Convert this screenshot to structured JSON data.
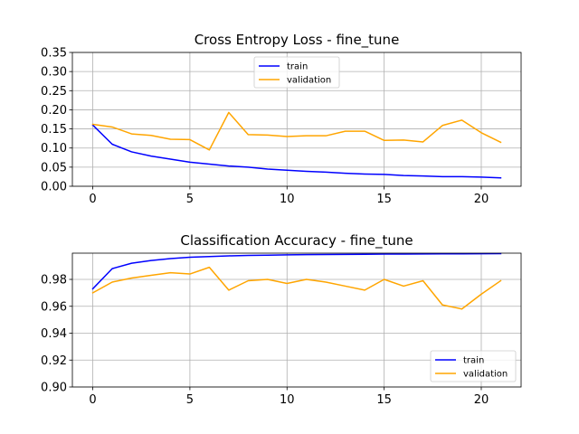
{
  "chart_data": [
    {
      "type": "line",
      "title": "Cross Entropy Loss - fine_tune",
      "xlabel": "",
      "ylabel": "",
      "xlim": [
        -1.05,
        22.05
      ],
      "ylim": [
        0.0,
        0.35
      ],
      "x_ticks": [
        0,
        5,
        10,
        15,
        20
      ],
      "y_ticks": [
        0.0,
        0.05,
        0.1,
        0.15,
        0.2,
        0.25,
        0.3,
        0.35
      ],
      "y_tick_labels": [
        "0.00",
        "0.05",
        "0.10",
        "0.15",
        "0.20",
        "0.25",
        "0.30",
        "0.35"
      ],
      "grid": true,
      "legend_position": "top-center",
      "x": [
        0,
        1,
        2,
        3,
        4,
        5,
        6,
        7,
        8,
        9,
        10,
        11,
        12,
        13,
        14,
        15,
        16,
        17,
        18,
        19,
        20,
        21
      ],
      "series": [
        {
          "name": "train",
          "color": "#0000ff",
          "values": [
            0.16,
            0.11,
            0.09,
            0.079,
            0.071,
            0.063,
            0.058,
            0.053,
            0.05,
            0.045,
            0.042,
            0.039,
            0.037,
            0.034,
            0.032,
            0.031,
            0.028,
            0.027,
            0.025,
            0.025,
            0.024,
            0.022
          ]
        },
        {
          "name": "validation",
          "color": "#ffa500",
          "values": [
            0.162,
            0.155,
            0.137,
            0.133,
            0.123,
            0.122,
            0.095,
            0.193,
            0.135,
            0.134,
            0.13,
            0.132,
            0.132,
            0.144,
            0.144,
            0.12,
            0.121,
            0.116,
            0.159,
            0.173,
            0.14,
            0.115
          ]
        }
      ]
    },
    {
      "type": "line",
      "title": "Classification Accuracy - fine_tune",
      "xlabel": "",
      "ylabel": "",
      "xlim": [
        -1.05,
        22.05
      ],
      "ylim": [
        0.9,
        0.9995
      ],
      "x_ticks": [
        0,
        5,
        10,
        15,
        20
      ],
      "y_ticks": [
        0.9,
        0.92,
        0.94,
        0.96,
        0.98
      ],
      "y_tick_labels": [
        "0.90",
        "0.92",
        "0.94",
        "0.96",
        "0.98"
      ],
      "grid": true,
      "legend_position": "bottom-right",
      "x": [
        0,
        1,
        2,
        3,
        4,
        5,
        6,
        7,
        8,
        9,
        10,
        11,
        12,
        13,
        14,
        15,
        16,
        17,
        18,
        19,
        20,
        21
      ],
      "series": [
        {
          "name": "train",
          "color": "#0000ff",
          "values": [
            0.973,
            0.988,
            0.992,
            0.994,
            0.9955,
            0.9965,
            0.997,
            0.9975,
            0.9978,
            0.998,
            0.9982,
            0.9984,
            0.9985,
            0.9986,
            0.9987,
            0.9988,
            0.9988,
            0.9989,
            0.999,
            0.999,
            0.9991,
            0.9992
          ]
        },
        {
          "name": "validation",
          "color": "#ffa500",
          "values": [
            0.97,
            0.978,
            0.981,
            0.983,
            0.985,
            0.984,
            0.989,
            0.972,
            0.979,
            0.98,
            0.977,
            0.98,
            0.978,
            0.975,
            0.972,
            0.98,
            0.975,
            0.979,
            0.961,
            0.958,
            0.969,
            0.979
          ]
        }
      ]
    }
  ]
}
